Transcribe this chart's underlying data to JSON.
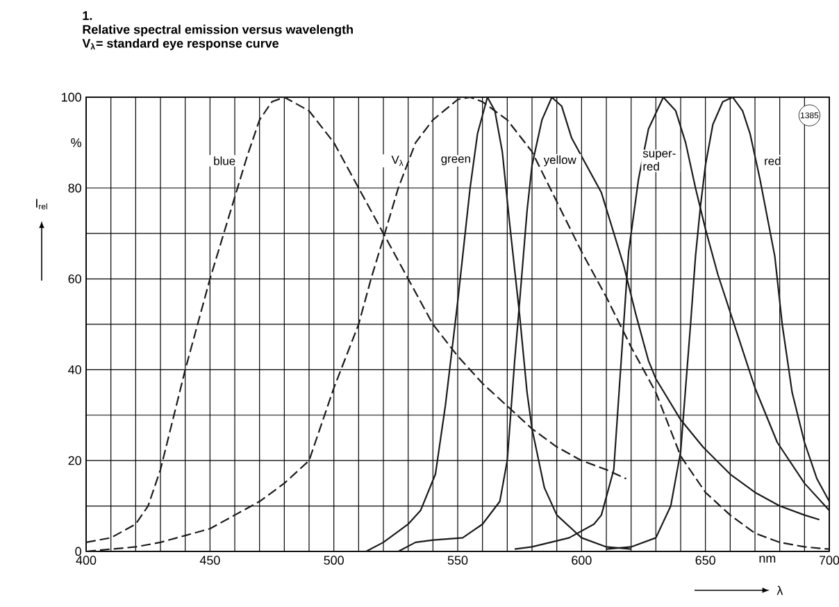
{
  "chart_data": {
    "type": "line",
    "title": "Relative spectral emission versus wavelength",
    "subtitle": "V$_{λ}$= standard eye response curve",
    "annotations": [
      "1.",
      "1385"
    ],
    "xlabel": "λ",
    "ylabel": "I$_{rel}$",
    "xlim": [
      400,
      700
    ],
    "ylim": [
      0,
      100
    ],
    "xticks": [
      400,
      {
        "value": 410,
        "label": null
      },
      {
        "value": 420,
        "label": null
      },
      {
        "value": 430,
        "label": null
      },
      {
        "value": 440,
        "label": null
      },
      450,
      {
        "value": 460,
        "label": null
      },
      {
        "value": 470,
        "label": null
      },
      {
        "value": 480,
        "label": null
      },
      {
        "value": 490,
        "label": null
      },
      500,
      {
        "value": 510,
        "label": null
      },
      {
        "value": 520,
        "label": null
      },
      {
        "value": 530,
        "label": null
      },
      {
        "value": 540,
        "label": null
      },
      550,
      {
        "value": 560,
        "label": null
      },
      {
        "value": 570,
        "label": null
      },
      {
        "value": 580,
        "label": null
      },
      {
        "value": 590,
        "label": null
      },
      600,
      {
        "value": 610,
        "label": null
      },
      {
        "value": 620,
        "label": null
      },
      {
        "value": 630,
        "label": null
      },
      {
        "value": 640,
        "label": null
      },
      650,
      {
        "value": 660,
        "label": null
      },
      {
        "value": 670,
        "label": null
      },
      {
        "value": 675,
        "label": "nm"
      },
      {
        "value": 680,
        "label": null
      },
      {
        "value": 690,
        "label": null
      },
      700
    ],
    "yticks": [
      0,
      {
        "value": 10,
        "label": null
      },
      20,
      {
        "value": 30,
        "label": null
      },
      40,
      {
        "value": 50,
        "label": null
      },
      60,
      {
        "value": 70,
        "label": null
      },
      80,
      {
        "value": 90,
        "label": "%"
      },
      100
    ],
    "grid": true,
    "legend": false,
    "marker": "none",
    "series": [
      {
        "name": "blue",
        "color": "#1a1a1a",
        "line_style": "dashed",
        "x": [
          400,
          410,
          420,
          425,
          430,
          440,
          450,
          460,
          465,
          470,
          475,
          480,
          490,
          500,
          510,
          520,
          530,
          540,
          550,
          560,
          570,
          580,
          590,
          600,
          610,
          618
        ],
        "values": [
          2,
          3,
          6,
          10,
          18,
          40,
          60,
          78,
          87,
          95,
          99,
          100,
          97,
          90,
          80,
          70,
          60,
          50,
          43,
          37,
          32,
          27,
          23,
          20,
          18,
          16
        ]
      },
      {
        "name": "V$_{λ}$",
        "color": "#1a1a1a",
        "line_style": "dashed",
        "x": [
          400,
          410,
          420,
          430,
          440,
          450,
          460,
          470,
          480,
          490,
          500,
          510,
          515,
          520,
          526,
          533,
          540,
          550,
          555,
          560,
          570,
          580,
          590,
          600,
          610,
          620,
          630,
          640,
          650,
          660,
          670,
          680,
          690,
          700
        ],
        "values": [
          0,
          0.5,
          1,
          2,
          3.5,
          5,
          8,
          11,
          15,
          20,
          36,
          50,
          60,
          69,
          80,
          90,
          95,
          99.5,
          100,
          99,
          95,
          88,
          77,
          66,
          56,
          45,
          35,
          21,
          13,
          8,
          4,
          2,
          1,
          0.5
        ]
      },
      {
        "name": "green",
        "color": "#1a1a1a",
        "line_style": "solid",
        "x": [
          513,
          520,
          530,
          535,
          541,
          545,
          550,
          555,
          558,
          562,
          565,
          568,
          571,
          575,
          578,
          580,
          585,
          590,
          600,
          610,
          620
        ],
        "values": [
          0,
          2,
          6,
          9,
          17,
          32,
          55,
          80,
          92,
          100,
          97,
          88,
          72,
          52,
          35,
          27,
          14,
          8,
          3,
          1,
          0.5
        ]
      },
      {
        "name": "yellow",
        "color": "#1a1a1a",
        "line_style": "solid",
        "x": [
          526,
          533,
          540,
          552,
          560,
          567,
          570,
          573,
          575,
          578,
          580,
          584,
          588,
          592,
          596,
          600,
          608,
          617,
          622,
          627,
          630,
          640,
          649,
          660,
          670,
          680,
          690,
          696
        ],
        "values": [
          0,
          2,
          2.5,
          3,
          6,
          11,
          20,
          42,
          55,
          75,
          85,
          95,
          100,
          98,
          91,
          87,
          79,
          63,
          52,
          42,
          38,
          29,
          23,
          17,
          13,
          10,
          8,
          7
        ]
      },
      {
        "name": "super-red",
        "color": "#1a1a1a",
        "line_style": "solid",
        "x": [
          573,
          580,
          595,
          605,
          608,
          613,
          616,
          619,
          623,
          627,
          633,
          638,
          642,
          646,
          650,
          655,
          664,
          670,
          679,
          690,
          700
        ],
        "values": [
          0.5,
          1,
          3,
          6,
          8,
          18,
          42,
          66,
          82,
          93,
          100,
          97,
          90,
          80,
          71,
          61,
          46,
          36,
          24,
          15,
          9
        ]
      },
      {
        "name": "red",
        "color": "#1a1a1a",
        "line_style": "solid",
        "x": [
          610,
          620,
          630,
          636,
          640,
          644,
          646,
          648,
          650,
          653,
          657,
          661,
          665,
          668,
          672,
          678,
          681,
          685,
          690,
          695,
          700
        ],
        "values": [
          0.5,
          1,
          3,
          10,
          22,
          50,
          65,
          76,
          85,
          94,
          99,
          100,
          97,
          92,
          82,
          65,
          50,
          35,
          24,
          16,
          11
        ]
      }
    ]
  }
}
